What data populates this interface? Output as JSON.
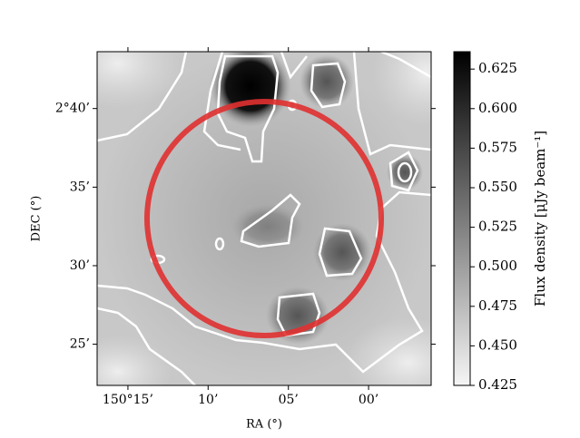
{
  "chart_data": {
    "type": "image",
    "xlabel": "RA (°)",
    "ylabel": "DEC (°)",
    "xlim": [
      150.282,
      149.935
    ],
    "xticks": [
      {
        "value": 150.25,
        "label": "150°15’"
      },
      {
        "value": 150.1667,
        "label": "10’"
      },
      {
        "value": 150.0833,
        "label": "05’"
      },
      {
        "value": 150.0,
        "label": "00’"
      }
    ],
    "ylim": [
      2.373,
      2.727
    ],
    "yticks": [
      {
        "value": 2.6667,
        "label": "2°40’"
      },
      {
        "value": 2.5833,
        "label": "35’"
      },
      {
        "value": 2.5,
        "label": "30’"
      },
      {
        "value": 2.4167,
        "label": "25’"
      }
    ],
    "colorbar": {
      "label": "Flux density [μJy beam⁻¹]",
      "lim": [
        0.425,
        0.636
      ],
      "ticks": [
        {
          "value": 0.425,
          "label": "0.425"
        },
        {
          "value": 0.45,
          "label": "0.450"
        },
        {
          "value": 0.475,
          "label": "0.475"
        },
        {
          "value": 0.5,
          "label": "0.500"
        },
        {
          "value": 0.525,
          "label": "0.525"
        },
        {
          "value": 0.55,
          "label": "0.550"
        },
        {
          "value": 0.575,
          "label": "0.575"
        },
        {
          "value": 0.6,
          "label": "0.600"
        },
        {
          "value": 0.625,
          "label": "0.625"
        }
      ]
    }
  }
}
